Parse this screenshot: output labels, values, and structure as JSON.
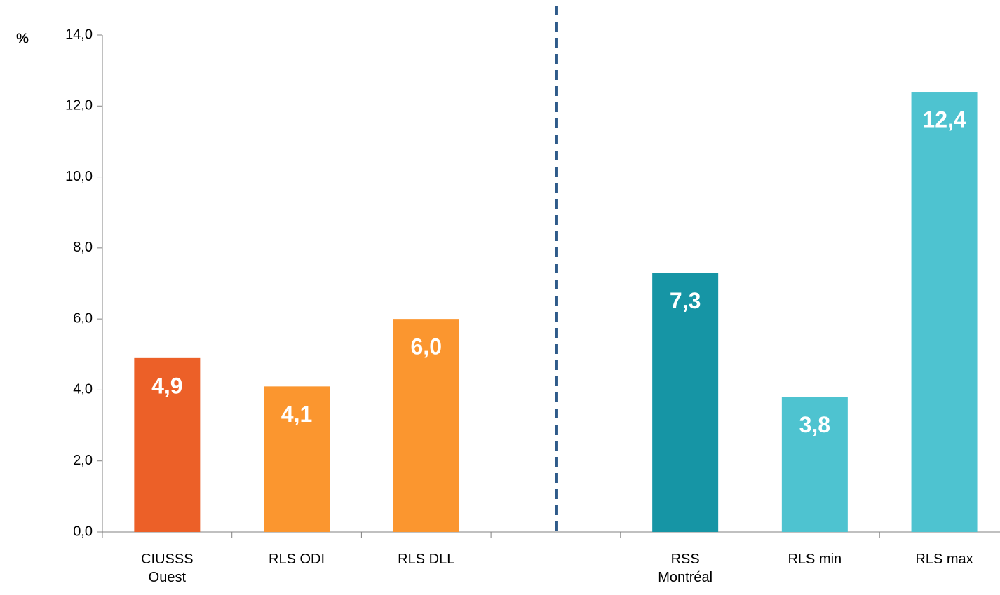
{
  "chart_data": {
    "type": "bar",
    "y_label": "%",
    "categories": [
      "CIUSSS Ouest",
      "RLS ODI",
      "RLS DLL",
      null,
      "RSS Montréal",
      "RLS min",
      "RLS max"
    ],
    "values": [
      4.9,
      4.1,
      6.0,
      null,
      7.3,
      3.8,
      12.4
    ],
    "value_labels": [
      "4,9",
      "4,1",
      "6,0",
      null,
      "7,3",
      "3,8",
      "12,4"
    ],
    "colors": [
      "#ec6028",
      "#fb962f",
      "#fb962f",
      null,
      "#1695a5",
      "#4ec3d0",
      "#4ec3d0"
    ],
    "ylim": [
      0,
      14
    ],
    "yticks": [
      {
        "value": 0,
        "label": "0,0"
      },
      {
        "value": 2,
        "label": "2,0"
      },
      {
        "value": 4,
        "label": "4,0"
      },
      {
        "value": 6,
        "label": "6,0"
      },
      {
        "value": 8,
        "label": "8,0"
      },
      {
        "value": 10,
        "label": "10,0"
      },
      {
        "value": 12,
        "label": "12,0"
      },
      {
        "value": 14,
        "label": "14,0"
      }
    ],
    "grid": false
  }
}
